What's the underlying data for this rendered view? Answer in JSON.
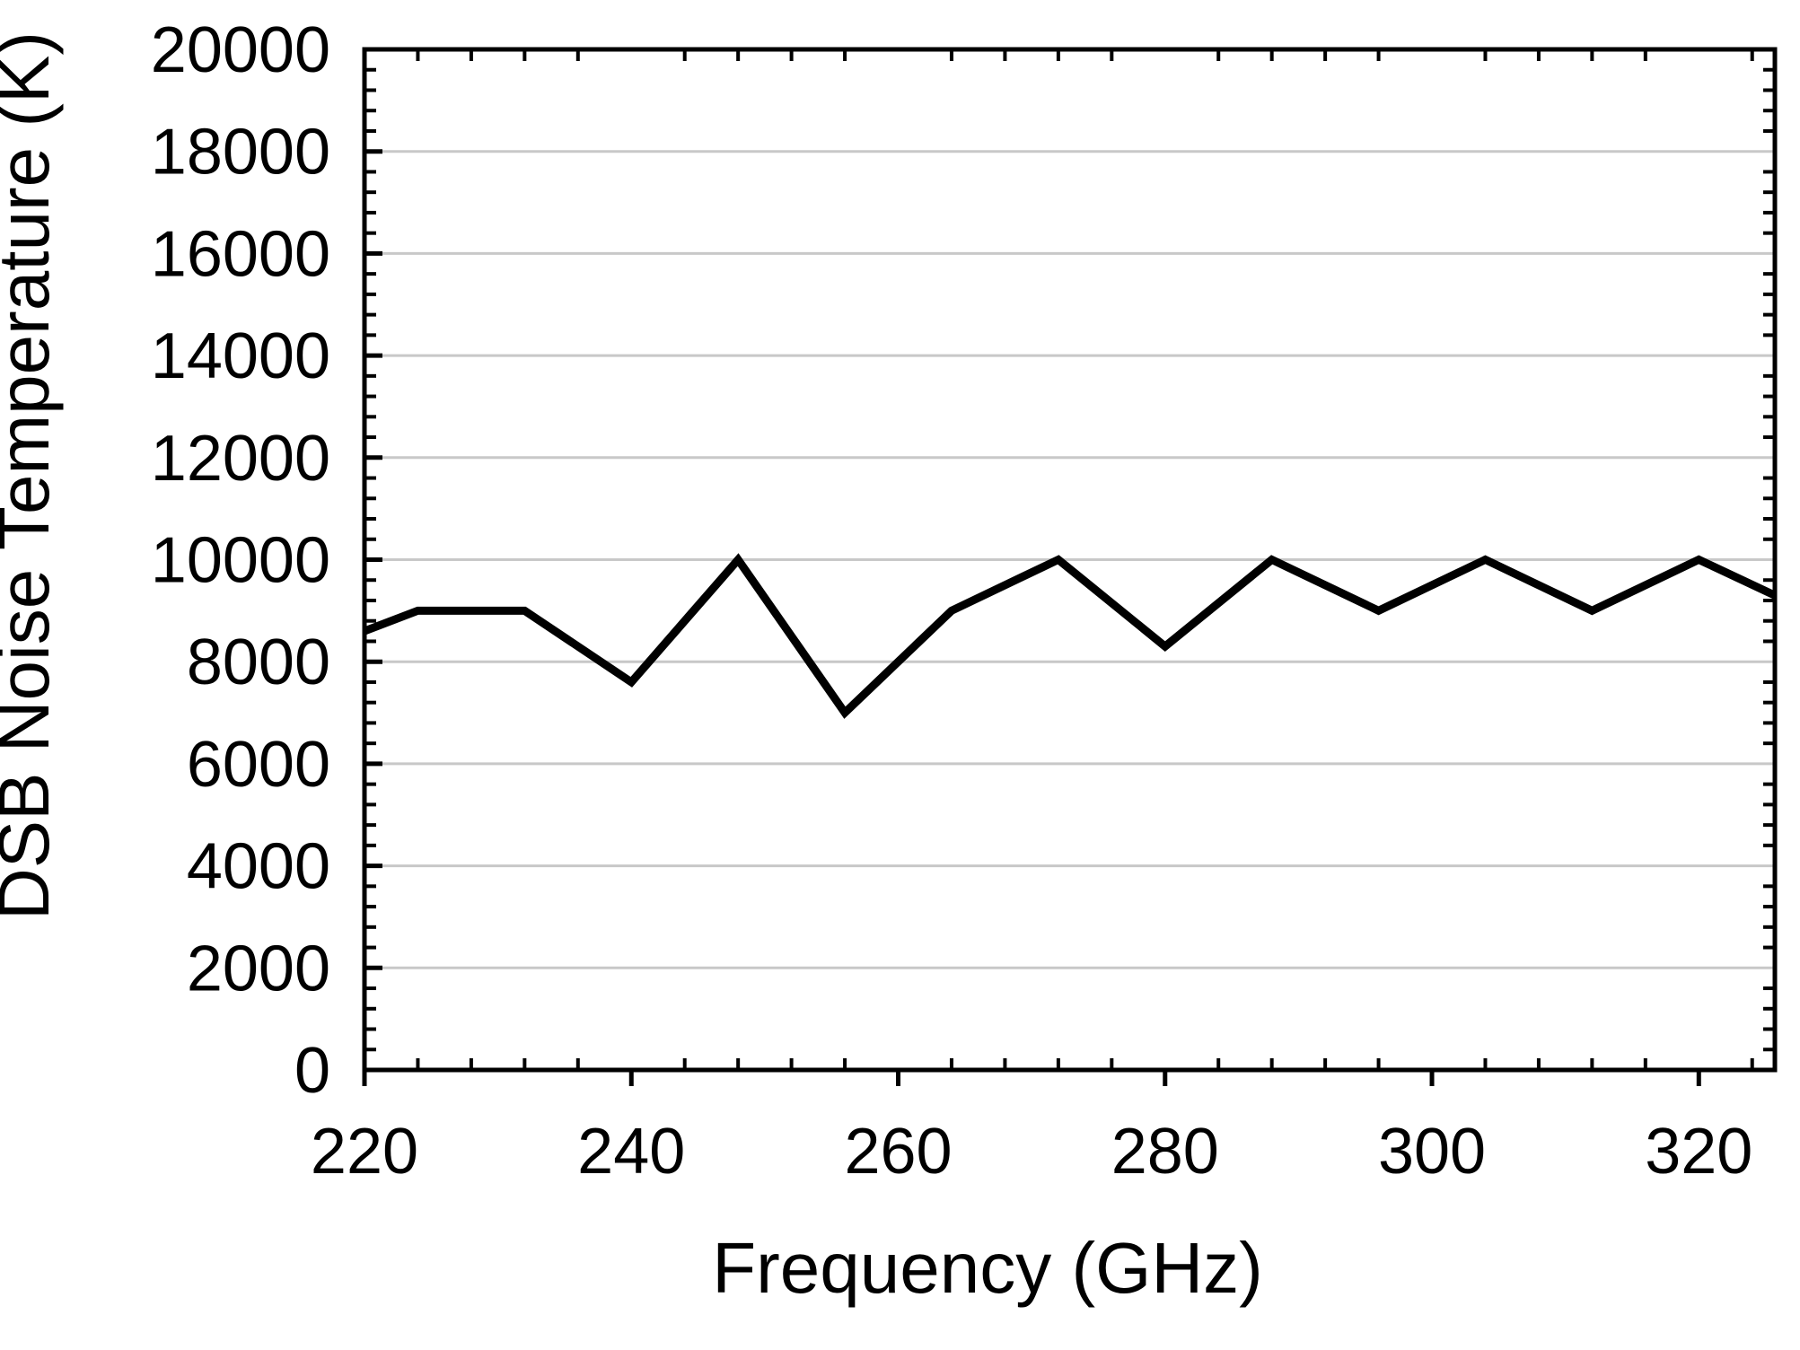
{
  "background": "#ffffff",
  "chart_data": {
    "type": "line",
    "title": "",
    "xlabel": "Frequency (GHz)",
    "ylabel": "DSB Noise Temperature (K)",
    "xlim": [
      220,
      325.7
    ],
    "ylim": [
      0,
      20000
    ],
    "x_major_ticks": [
      220,
      240,
      260,
      280,
      300,
      320
    ],
    "x_minor_step": 4,
    "y_major_step": 2000,
    "y_minor_step": 400,
    "grid": "horizontal-major-only",
    "legend": "none",
    "frame": "box-with-inward-minor-ticks",
    "line_color": "#000000",
    "grid_color": "#c8c8c8",
    "axis_color": "#000000",
    "series": [
      {
        "name": "DSB noise temperature",
        "x": [
          220,
          224,
          232,
          240,
          248,
          256,
          264,
          272,
          280,
          288,
          296,
          304,
          312,
          320,
          325.7
        ],
        "y": [
          8600,
          9000,
          9000,
          7600,
          10000,
          7000,
          9000,
          10000,
          8300,
          10000,
          9000,
          10000,
          9000,
          10000,
          9300
        ]
      }
    ]
  }
}
